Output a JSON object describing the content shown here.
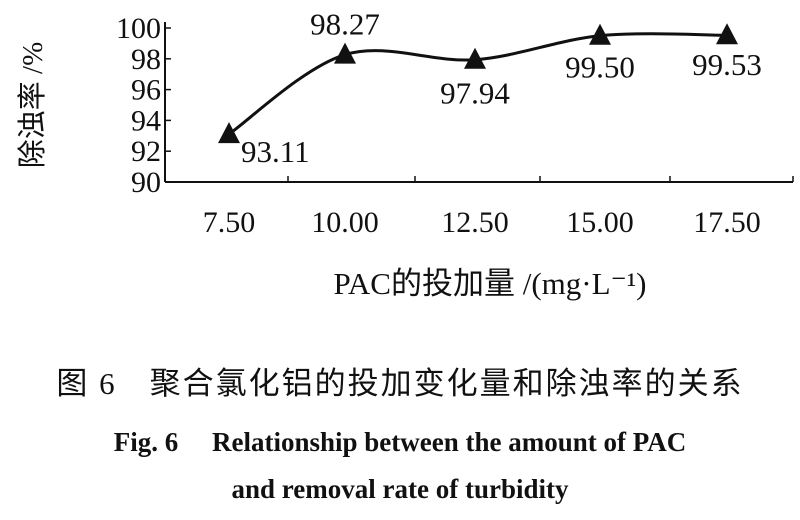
{
  "chart_data": {
    "type": "line",
    "x": [
      7.5,
      10.0,
      12.5,
      15.0,
      17.5
    ],
    "categories": [
      "7.50",
      "10.00",
      "12.50",
      "15.00",
      "17.50"
    ],
    "values": [
      93.11,
      98.27,
      97.94,
      99.5,
      99.53
    ],
    "data_labels": [
      "93.11",
      "98.27",
      "97.94",
      "99.50",
      "99.53"
    ],
    "marker": "triangle",
    "color": "#111111",
    "xlabel": "PAC的投加量 /(mg·L⁻¹)",
    "ylabel": "除浊率 /%",
    "ylim": [
      90,
      100
    ],
    "yticks": [
      "90",
      "92",
      "94",
      "96",
      "98",
      "100"
    ],
    "grid": false
  },
  "caption": {
    "cn": "图 6　聚合氯化铝的投加变化量和除浊率的关系",
    "en_line1": "Fig. 6　 Relationship between the amount of PAC",
    "en_line2": "and removal rate of turbidity"
  }
}
